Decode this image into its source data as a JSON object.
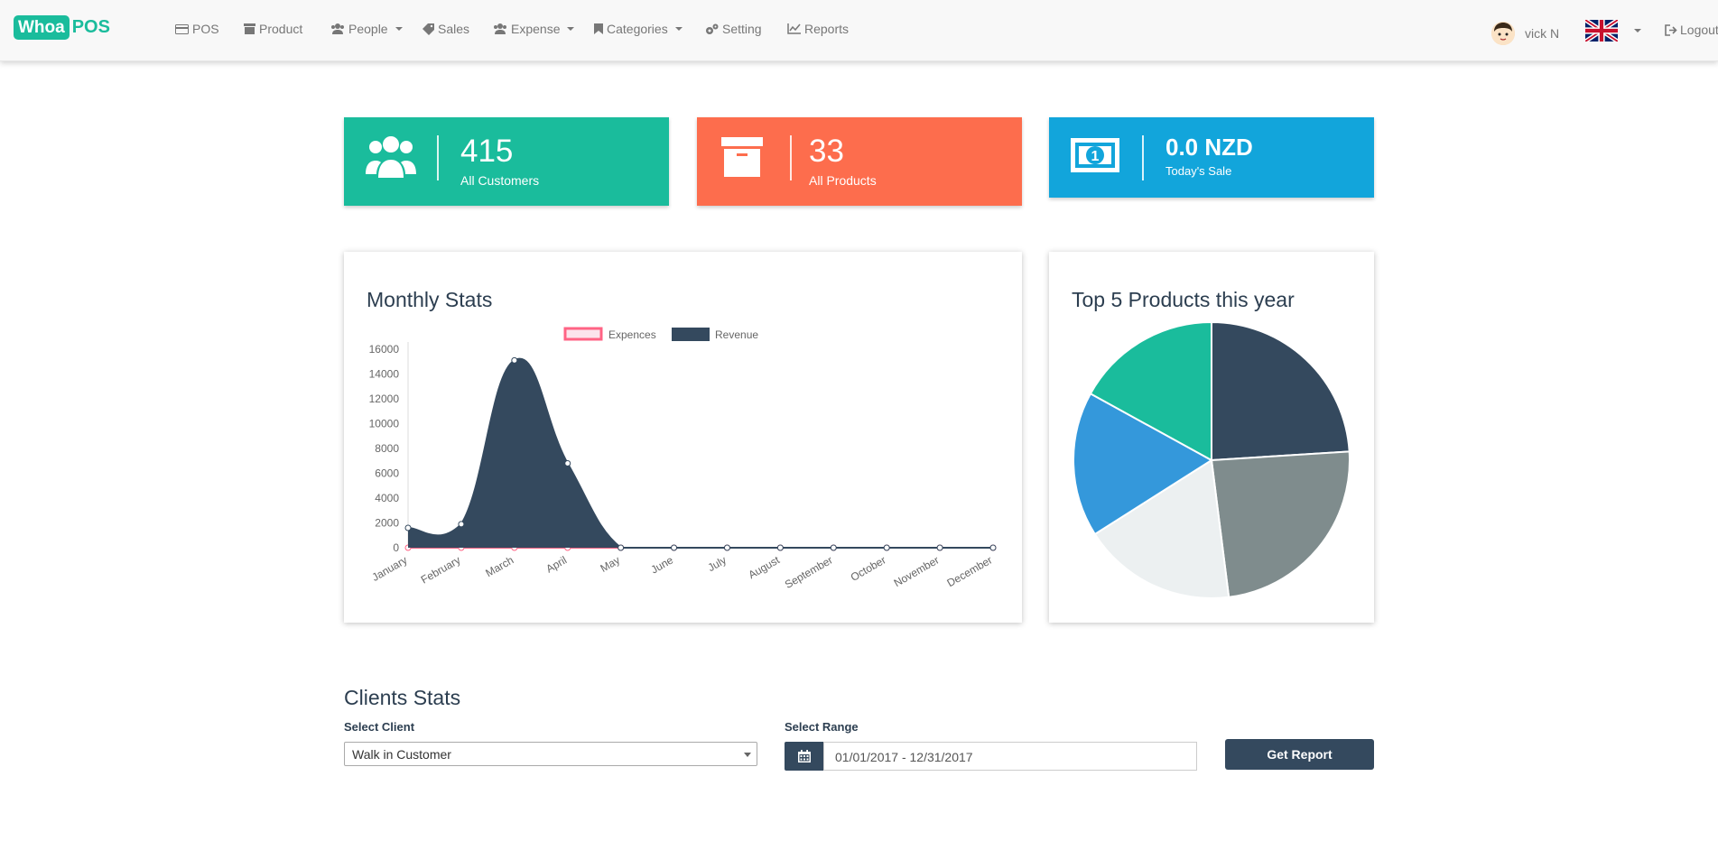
{
  "brand": {
    "logo_box": "Whoa",
    "logo_text": "POS"
  },
  "nav": {
    "items": [
      {
        "label": "POS",
        "icon": "credit-card-icon"
      },
      {
        "label": "Product",
        "icon": "archive-icon"
      },
      {
        "label": "People",
        "icon": "users-icon",
        "dropdown": true
      },
      {
        "label": "Sales",
        "icon": "tag-icon"
      },
      {
        "label": "Expense",
        "icon": "users-icon",
        "dropdown": true
      },
      {
        "label": "Categories",
        "icon": "bookmark-icon",
        "dropdown": true
      },
      {
        "label": "Setting",
        "icon": "cogs-icon"
      },
      {
        "label": "Reports",
        "icon": "line-chart-icon"
      }
    ],
    "user_name": "vick N",
    "logout_label": "Logout"
  },
  "stats": [
    {
      "value": "415",
      "label": "All Customers",
      "color": "#1abc9c",
      "icon": "users-icon"
    },
    {
      "value": "33",
      "label": "All Products",
      "color": "#fd6d4d",
      "icon": "archive-icon"
    },
    {
      "value": "0.0 NZD",
      "label": "Today's Sale",
      "color": "#12a5db",
      "icon": "money-icon"
    }
  ],
  "monthly_panel": {
    "title": "Monthly Stats"
  },
  "pie_panel": {
    "title": "Top 5 Products this year"
  },
  "chart_data": [
    {
      "type": "area",
      "title": "Monthly Stats",
      "categories": [
        "January",
        "February",
        "March",
        "April",
        "May",
        "June",
        "July",
        "August",
        "September",
        "October",
        "November",
        "December"
      ],
      "series": [
        {
          "name": "Expences",
          "color": "#ff6384",
          "values": [
            0,
            0,
            0,
            0,
            0,
            0,
            0,
            0,
            0,
            0,
            0,
            0
          ]
        },
        {
          "name": "Revenue",
          "color": "#34495e",
          "values": [
            1600,
            1900,
            15100,
            6800,
            0,
            0,
            0,
            0,
            0,
            0,
            0,
            0
          ]
        }
      ],
      "yticks": [
        0,
        2000,
        4000,
        6000,
        8000,
        10000,
        12000,
        14000,
        16000
      ],
      "ylim": [
        0,
        16000
      ],
      "legend": "top"
    },
    {
      "type": "pie",
      "title": "Top 5 Products this year",
      "slices": [
        {
          "value": 24,
          "color": "#34495e"
        },
        {
          "value": 24,
          "color": "#7f8c8d"
        },
        {
          "value": 18,
          "color": "#ecf0f1"
        },
        {
          "value": 17,
          "color": "#3498db"
        },
        {
          "value": 17,
          "color": "#1abc9c"
        }
      ]
    }
  ],
  "clients": {
    "title": "Clients Stats",
    "select_client_label": "Select Client",
    "client_value": "Walk in Customer",
    "select_range_label": "Select Range",
    "range_value": "01/01/2017 - 12/31/2017",
    "report_button": "Get Report"
  }
}
